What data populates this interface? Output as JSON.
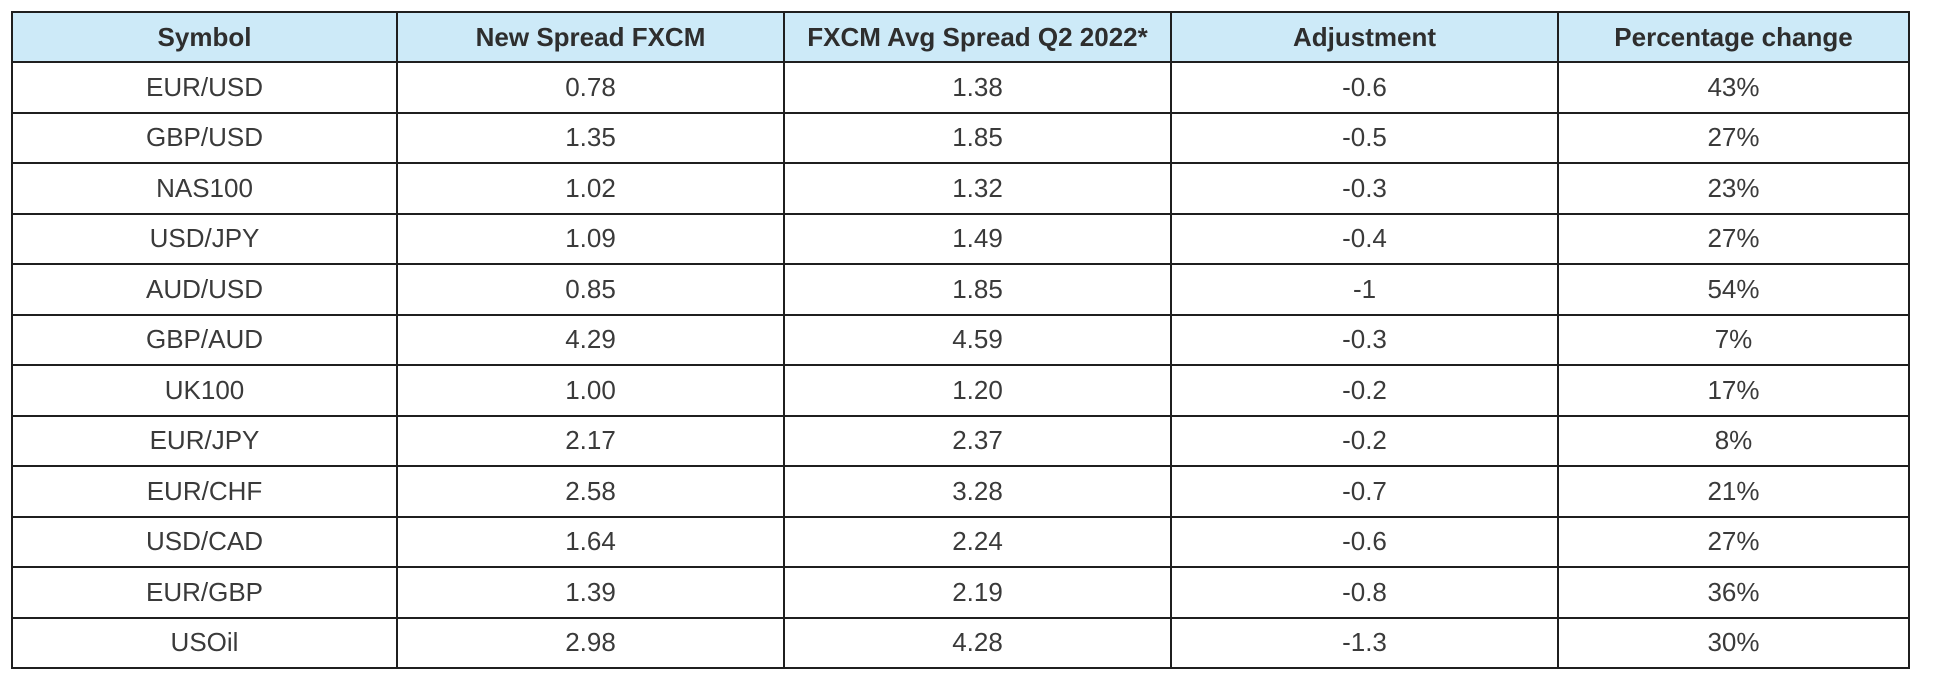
{
  "table": {
    "headers": [
      "Symbol",
      "New Spread FXCM",
      "FXCM Avg Spread Q2 2022*",
      "Adjustment",
      "Percentage change"
    ],
    "rows": [
      [
        "EUR/USD",
        "0.78",
        "1.38",
        "-0.6",
        "43%"
      ],
      [
        "GBP/USD",
        "1.35",
        "1.85",
        "-0.5",
        "27%"
      ],
      [
        "NAS100",
        "1.02",
        "1.32",
        "-0.3",
        "23%"
      ],
      [
        "USD/JPY",
        "1.09",
        "1.49",
        "-0.4",
        "27%"
      ],
      [
        "AUD/USD",
        "0.85",
        "1.85",
        "-1",
        "54%"
      ],
      [
        "GBP/AUD",
        "4.29",
        "4.59",
        "-0.3",
        "7%"
      ],
      [
        "UK100",
        "1.00",
        "1.20",
        "-0.2",
        "17%"
      ],
      [
        "EUR/JPY",
        "2.17",
        "2.37",
        "-0.2",
        "8%"
      ],
      [
        "EUR/CHF",
        "2.58",
        "3.28",
        "-0.7",
        "21%"
      ],
      [
        "USD/CAD",
        "1.64",
        "2.24",
        "-0.6",
        "27%"
      ],
      [
        "EUR/GBP",
        "1.39",
        "2.19",
        "-0.8",
        "36%"
      ],
      [
        "USOil",
        "2.98",
        "4.28",
        "-1.3",
        "30%"
      ]
    ]
  },
  "colors": {
    "header_background": "#cdeaf8",
    "border": "#1f1f1f",
    "text": "#3a3a3a"
  }
}
